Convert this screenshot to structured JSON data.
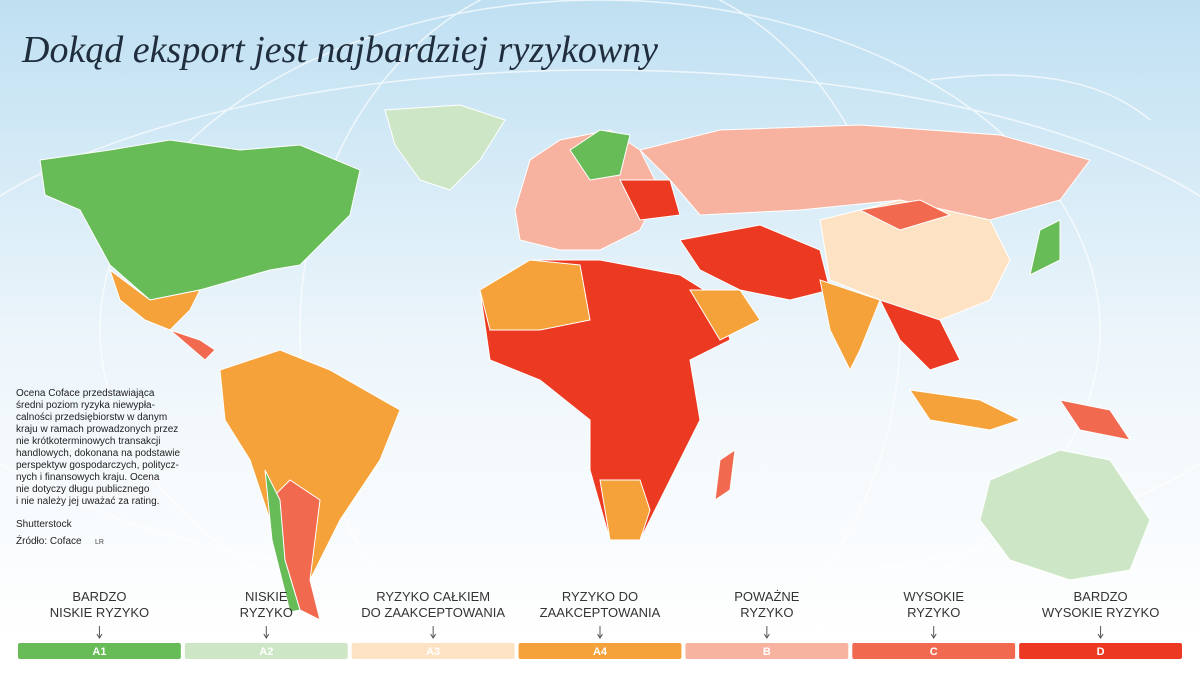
{
  "header": {
    "title": "Dokąd eksport jest najbardziej ryzykowny"
  },
  "note": {
    "lines": [
      "Ocena Coface przedstawiająca",
      "średni poziom ryzyka niewypła-",
      "calności przedsiębiorstw w danym",
      "kraju w ramach prowadzonych przez",
      "nie krótkoterminowych transakcji",
      "handlowych, dokonana na podstawie",
      "perspektyw gospodarczych, politycz-",
      "nych i finansowych kraju. Ocena",
      "nie dotyczy długu publicznego",
      "i nie należy jej uważać za rating."
    ]
  },
  "credits": {
    "photo": "Shutterstock",
    "source": "Źródło: Coface",
    "author": "LR"
  },
  "legend": {
    "items": [
      {
        "label": [
          "BARDZO",
          "NISKIE RYZYKO"
        ],
        "code": "A1",
        "color": "#67bc57"
      },
      {
        "label": [
          "NISKIE",
          "RYZYKO"
        ],
        "code": "A2",
        "color": "#cde7c6"
      },
      {
        "label": [
          "RYZYKO CAŁKIEM",
          "DO ZAAKCEPTOWANIA"
        ],
        "code": "A3",
        "color": "#fde2c4"
      },
      {
        "label": [
          "RYZYKO DO",
          "ZAAKCEPTOWANIA"
        ],
        "code": "A4",
        "color": "#f5a23a"
      },
      {
        "label": [
          "POWAŻNE",
          "RYZYKO"
        ],
        "code": "B",
        "color": "#f8b3a0"
      },
      {
        "label": [
          "WYSOKIE",
          "RYZYKO"
        ],
        "code": "C",
        "color": "#f16a4f"
      },
      {
        "label": [
          "BARDZO",
          "WYSOKIE RYZYKO"
        ],
        "code": "D",
        "color": "#ec3a22"
      }
    ]
  }
}
